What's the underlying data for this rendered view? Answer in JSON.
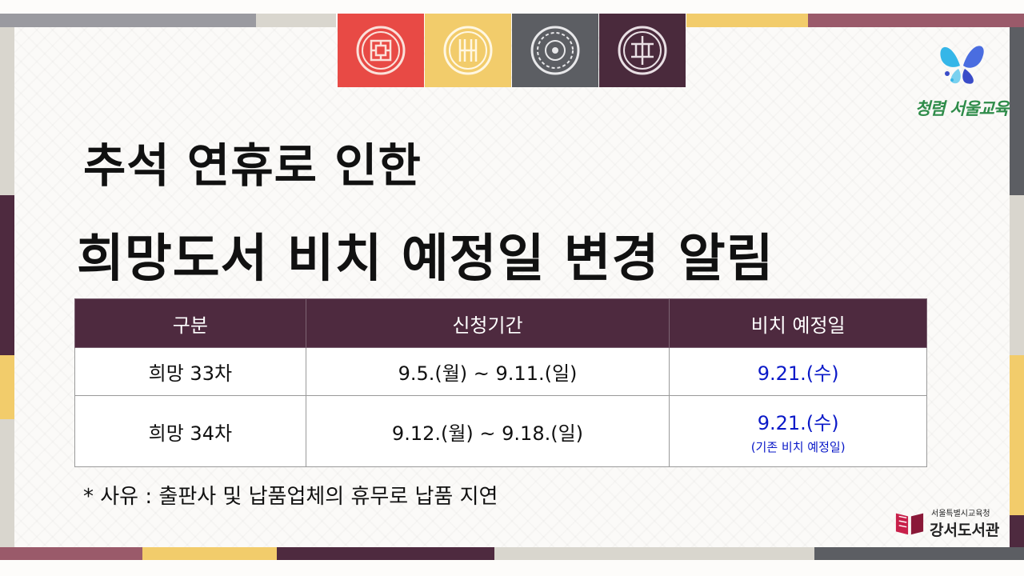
{
  "title": {
    "line1": "추석 연휴로 인한",
    "line2": "희망도서 비치 예정일 변경 알림"
  },
  "table": {
    "headers": [
      "구분",
      "신청기간",
      "비치 예정일"
    ],
    "rows": [
      {
        "round": "희망 33차",
        "period": "9.5.(월) ~ 9.11.(일)",
        "date": "9.21.(수)",
        "note": ""
      },
      {
        "round": "희망 34차",
        "period": "9.12.(월) ~ 9.18.(일)",
        "date": "9.21.(수)",
        "note": "(기존 비치 예정일)"
      }
    ]
  },
  "footnote": "* 사유 : 출판사 및 납품업체의 휴무로 납품 지연",
  "logos": {
    "top_slogan": "청렴 서울교육",
    "bottom_org": "서울특별시교육청",
    "bottom_library": "강서도서관"
  },
  "colors": {
    "header_bg": "#4e2a3f",
    "highlight_text": "#0a19c8",
    "tile_red": "#e84a45",
    "tile_yellow": "#f2cc6b",
    "tile_gray": "#5c5e63",
    "tile_plum": "#4a2a3c"
  }
}
